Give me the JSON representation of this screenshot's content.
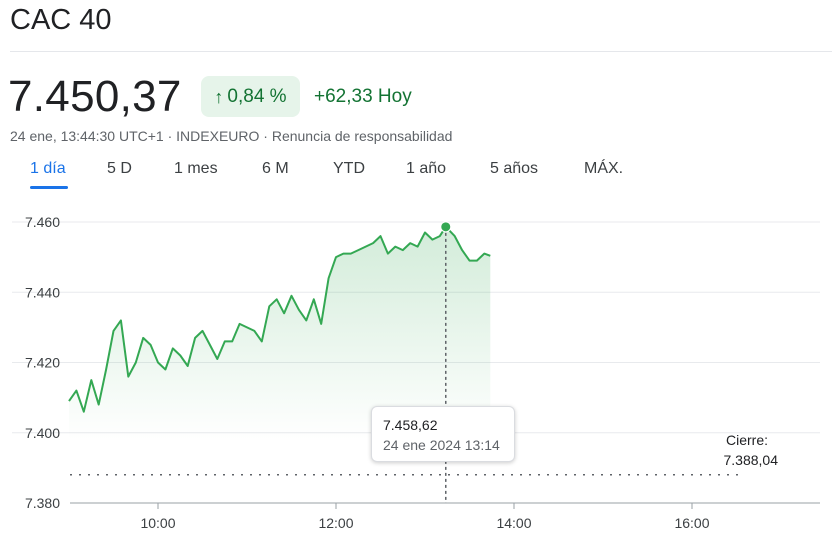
{
  "header": {
    "title": "CAC 40",
    "price": "7.450,37",
    "change_pct": "0,84 %",
    "change_abs": "+62,33 Hoy",
    "meta": "24 ene, 13:44:30 UTC+1 · INDEXEURO · Renuncia de responsabilidad",
    "arrow_icon": "arrow-up-icon"
  },
  "tabs": [
    {
      "label": "1 día",
      "active": true
    },
    {
      "label": "5 D",
      "active": false
    },
    {
      "label": "1 mes",
      "active": false
    },
    {
      "label": "6 M",
      "active": false
    },
    {
      "label": "YTD",
      "active": false
    },
    {
      "label": "1 año",
      "active": false
    },
    {
      "label": "5 años",
      "active": false
    },
    {
      "label": "MÁX.",
      "active": false
    }
  ],
  "tooltip": {
    "value": "7.458,62",
    "date": "24 ene 2024 13:14"
  },
  "close": {
    "label": "Cierre:",
    "value": "7.388,04"
  },
  "colors": {
    "line": "#34a853",
    "positive_text": "#137333",
    "badge_bg": "#e6f4ea",
    "accent": "#1a73e8",
    "grid": "#e8eaed"
  },
  "chart_data": {
    "type": "area",
    "xlabel": "",
    "ylabel": "",
    "ylim": [
      7380,
      7465
    ],
    "xlim": [
      "09:00",
      "17:30"
    ],
    "y_ticks": [
      "7.380",
      "7.400",
      "7.420",
      "7.440",
      "7.460"
    ],
    "y_tick_values": [
      7380,
      7400,
      7420,
      7440,
      7460
    ],
    "x_ticks": [
      "10:00",
      "12:00",
      "14:00",
      "16:00"
    ],
    "previous_close": 7388.04,
    "highlight": {
      "time": "13:14",
      "value": 7458.62
    },
    "series": [
      {
        "time": [
          "09:00",
          "09:05",
          "09:10",
          "09:15",
          "09:20",
          "09:25",
          "09:30",
          "09:35",
          "09:40",
          "09:45",
          "09:50",
          "09:55",
          "10:00",
          "10:05",
          "10:10",
          "10:15",
          "10:20",
          "10:25",
          "10:30",
          "10:35",
          "10:40",
          "10:45",
          "10:50",
          "10:55",
          "11:00",
          "11:05",
          "11:10",
          "11:15",
          "11:20",
          "11:25",
          "11:30",
          "11:35",
          "11:40",
          "11:45",
          "11:50",
          "11:55",
          "12:00",
          "12:05",
          "12:10",
          "12:15",
          "12:20",
          "12:25",
          "12:30",
          "12:35",
          "12:40",
          "12:45",
          "12:50",
          "12:55",
          "13:00",
          "13:05",
          "13:10",
          "13:14",
          "13:20",
          "13:25",
          "13:30",
          "13:35",
          "13:40",
          "13:44"
        ],
        "values": [
          7409,
          7412,
          7406,
          7415,
          7408,
          7418,
          7429,
          7432,
          7416,
          7420,
          7427,
          7425,
          7420,
          7418,
          7424,
          7422,
          7419,
          7427,
          7429,
          7425,
          7421,
          7426,
          7426,
          7431,
          7430,
          7429,
          7426,
          7436,
          7438,
          7434,
          7439,
          7435,
          7432,
          7438,
          7431,
          7444,
          7450,
          7451,
          7451,
          7452,
          7453,
          7454,
          7456,
          7451,
          7453,
          7452,
          7454,
          7453,
          7457,
          7455,
          7456,
          7458.62,
          7456,
          7452,
          7449,
          7449,
          7451,
          7450.37
        ]
      }
    ]
  }
}
